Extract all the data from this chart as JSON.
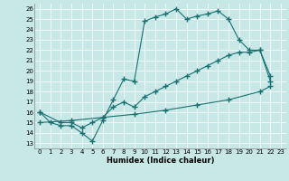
{
  "xlabel": "Humidex (Indice chaleur)",
  "bg_color": "#c8e8e8",
  "line_color": "#1a7070",
  "xlim": [
    -0.5,
    23.5
  ],
  "ylim": [
    12.5,
    26.5
  ],
  "xticks": [
    0,
    1,
    2,
    3,
    4,
    5,
    6,
    7,
    8,
    9,
    10,
    11,
    12,
    13,
    14,
    15,
    16,
    17,
    18,
    19,
    20,
    21,
    22,
    23
  ],
  "yticks": [
    13,
    14,
    15,
    16,
    17,
    18,
    19,
    20,
    21,
    22,
    23,
    24,
    25,
    26
  ],
  "line1": {
    "x": [
      0,
      1,
      2,
      3,
      4,
      5,
      6,
      7,
      8,
      9,
      10,
      11,
      12,
      13,
      14,
      15,
      16,
      17,
      18,
      19,
      20,
      21,
      22
    ],
    "y": [
      16,
      15,
      14.7,
      14.7,
      14,
      13.2,
      15.2,
      17.2,
      19.2,
      19,
      24.8,
      25.2,
      25.5,
      26.0,
      25.0,
      25.3,
      25.5,
      25.8,
      25.0,
      23.0,
      22.0,
      22.0,
      19.0
    ]
  },
  "line2": {
    "x": [
      0,
      2,
      3,
      4,
      5,
      6,
      7,
      8,
      9,
      10,
      11,
      12,
      13,
      14,
      15,
      16,
      17,
      18,
      19,
      20,
      21,
      22
    ],
    "y": [
      16,
      15,
      15,
      14.5,
      15,
      15.5,
      16.5,
      17,
      16.5,
      17.5,
      18.0,
      18.5,
      19.0,
      19.5,
      20.0,
      20.5,
      21.0,
      21.5,
      21.8,
      21.8,
      22.0,
      19.5
    ]
  },
  "line3": {
    "x": [
      0,
      3,
      6,
      9,
      12,
      15,
      18,
      21,
      22
    ],
    "y": [
      15,
      15.2,
      15.5,
      15.8,
      16.2,
      16.7,
      17.2,
      18.0,
      18.5
    ]
  }
}
